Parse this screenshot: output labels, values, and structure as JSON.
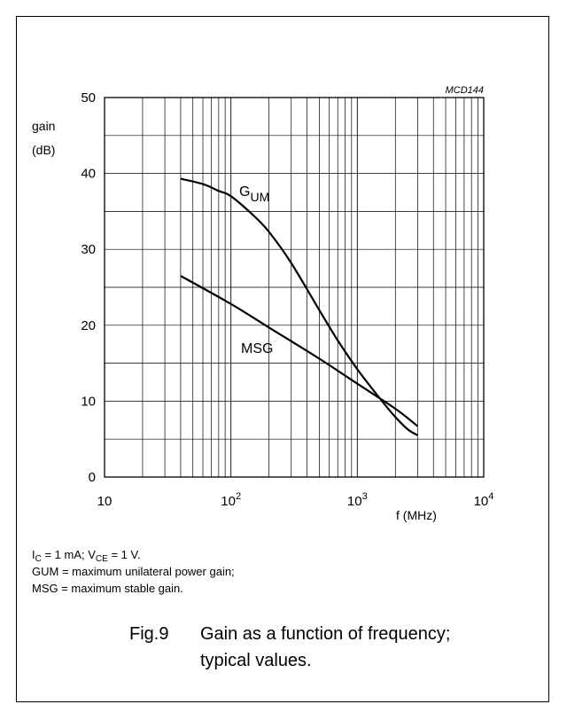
{
  "chart_data": {
    "type": "line",
    "ref_code": "MCD144",
    "ylabel_line1": "gain",
    "ylabel_line2": "(dB)",
    "xlabel": "f (MHz)",
    "x_scale": "log",
    "xlim": [
      10,
      10000
    ],
    "ylim": [
      0,
      50
    ],
    "grid": true,
    "y_ticks": [
      "0",
      "10",
      "20",
      "30",
      "40",
      "50"
    ],
    "x_ticks": [
      {
        "value": 10,
        "base": "10",
        "exp": ""
      },
      {
        "value": 100,
        "base": "10",
        "exp": "2"
      },
      {
        "value": 1000,
        "base": "10",
        "exp": "3"
      },
      {
        "value": 10000,
        "base": "10",
        "exp": "4"
      }
    ],
    "series": [
      {
        "name": "GUM",
        "label_main": "G",
        "label_sub": "UM",
        "points": [
          [
            40,
            39.3
          ],
          [
            60,
            38.6
          ],
          [
            80,
            37.7
          ],
          [
            100,
            37.0
          ],
          [
            150,
            34.5
          ],
          [
            200,
            32.3
          ],
          [
            300,
            28.2
          ],
          [
            500,
            22.0
          ],
          [
            700,
            18.0
          ],
          [
            1000,
            14.2
          ],
          [
            1500,
            10.4
          ],
          [
            2000,
            7.9
          ],
          [
            2500,
            6.3
          ],
          [
            3000,
            5.5
          ]
        ]
      },
      {
        "name": "MSG",
        "label_main": "MSG",
        "label_sub": "",
        "points": [
          [
            40,
            26.5
          ],
          [
            100,
            22.8
          ],
          [
            200,
            19.7
          ],
          [
            500,
            15.6
          ],
          [
            1000,
            12.3
          ],
          [
            2000,
            9.0
          ],
          [
            3000,
            6.7
          ]
        ]
      }
    ]
  },
  "notes": {
    "condition": {
      "i": "I",
      "i_sub": "C",
      "i_val": " = 1 mA; V",
      "v_sub": "CE",
      "v_val": " = 1 V."
    },
    "gum_def": "GUM = maximum unilateral power gain;",
    "msg_def": "MSG = maximum stable gain."
  },
  "caption": {
    "fig": "Fig.9",
    "line1": "Gain as a function of frequency;",
    "line2": "typical values."
  }
}
